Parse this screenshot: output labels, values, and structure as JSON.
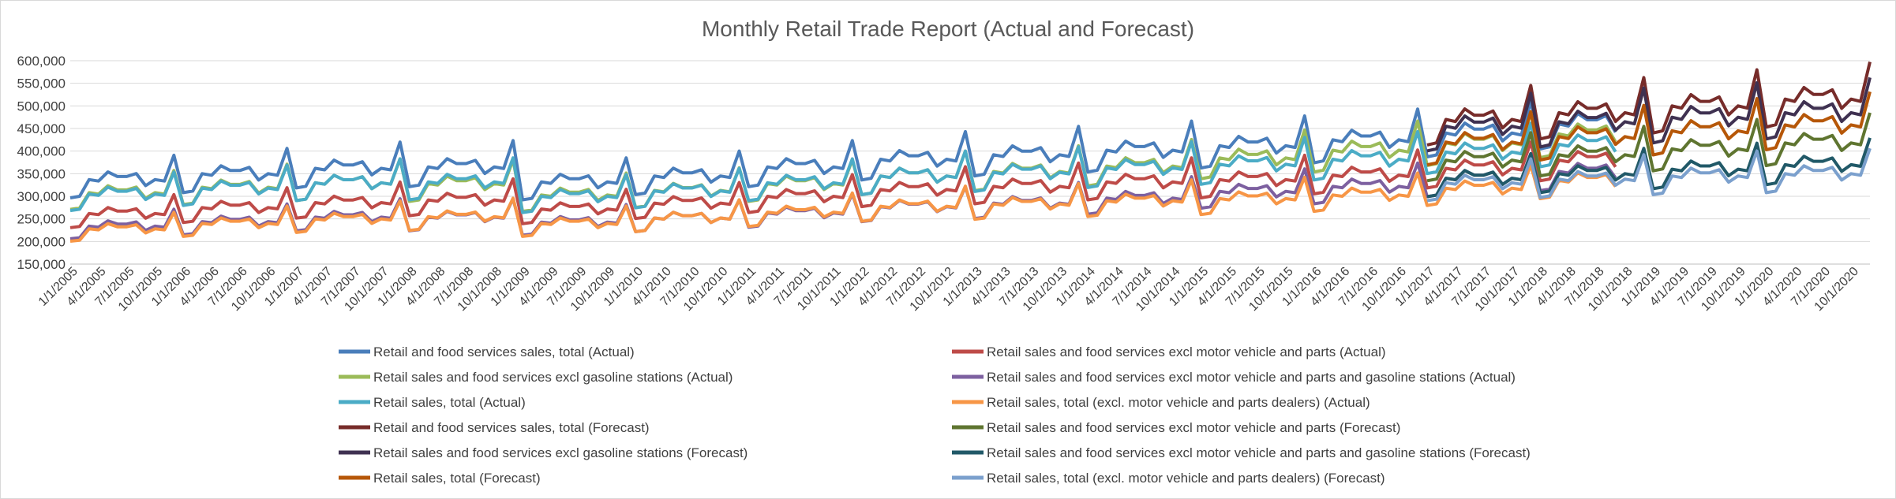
{
  "chart_data": {
    "type": "line",
    "title": "Monthly Retail Trade Report (Actual and Forecast)",
    "xlabel": "",
    "ylabel": "",
    "ylim": [
      150000,
      600000
    ],
    "yticks": [
      "150,000",
      "200,000",
      "250,000",
      "300,000",
      "350,000",
      "400,000",
      "450,000",
      "500,000",
      "550,000",
      "600,000"
    ],
    "x_start": "1/1/2005",
    "x_end": "12/1/2020",
    "x_tick_labels": [
      "1/1/2005",
      "4/1/2005",
      "7/1/2005",
      "10/1/2005",
      "1/1/2006",
      "4/1/2006",
      "7/1/2006",
      "10/1/2006",
      "1/1/2007",
      "4/1/2007",
      "7/1/2007",
      "10/1/2007",
      "1/1/2008",
      "4/1/2008",
      "7/1/2008",
      "10/1/2008",
      "1/1/2009",
      "4/1/2009",
      "7/1/2009",
      "10/1/2009",
      "1/1/2010",
      "4/1/2010",
      "7/1/2010",
      "10/1/2010",
      "1/1/2011",
      "4/1/2011",
      "7/1/2011",
      "10/1/2011",
      "1/1/2012",
      "4/1/2012",
      "7/1/2012",
      "10/1/2012",
      "1/1/2013",
      "4/1/2013",
      "7/1/2013",
      "10/1/2013",
      "1/1/2014",
      "4/1/2014",
      "7/1/2014",
      "10/1/2014",
      "1/1/2015",
      "4/1/2015",
      "7/1/2015",
      "10/1/2015",
      "1/1/2016",
      "4/1/2016",
      "7/1/2016",
      "10/1/2016",
      "1/1/2017",
      "4/1/2017",
      "7/1/2017",
      "10/1/2017",
      "1/1/2018",
      "4/1/2018",
      "7/1/2018",
      "10/1/2018",
      "1/1/2019",
      "4/1/2019",
      "7/1/2019",
      "10/1/2019",
      "1/1/2020",
      "4/1/2020",
      "7/1/2020",
      "10/1/2020"
    ],
    "grid": true,
    "legend_position": "bottom",
    "seasonal_pattern": [
      -0.12,
      -0.11,
      0.0,
      -0.01,
      0.05,
      0.02,
      0.02,
      0.04,
      -0.04,
      0.0,
      -0.01,
      0.16
    ],
    "series": [
      {
        "name": "Retail and food services sales, total (Actual)",
        "color": "#4a7ebb",
        "x_range": [
          "1/1/2005",
          "9/1/2018"
        ],
        "annual_mean": [
          337000,
          350000,
          362000,
          365000,
          332000,
          345000,
          365000,
          382000,
          392000,
          402000,
          412000,
          425000,
          440000,
          460000
        ]
      },
      {
        "name": "Retail sales and food services excl motor vehicle and parts (Actual)",
        "color": "#be4b48",
        "x_range": [
          "1/1/2005",
          "9/1/2018"
        ],
        "annual_mean": [
          262000,
          275000,
          286000,
          292000,
          272000,
          285000,
          300000,
          315000,
          322000,
          332000,
          337000,
          347000,
          362000,
          380000
        ]
      },
      {
        "name": "Retail sales and food services excl gasoline stations (Actual)",
        "color": "#9bbb59",
        "x_range": [
          "1/1/2005",
          "9/1/2018"
        ],
        "annual_mean": [
          308000,
          320000,
          330000,
          328000,
          303000,
          313000,
          328000,
          345000,
          355000,
          367000,
          385000,
          402000,
          418000,
          438000
        ]
      },
      {
        "name": "Retail sales and food services excl motor vehicle and parts and gasoline stations (Actual)",
        "color": "#7d60a0",
        "x_range": [
          "1/1/2005",
          "9/1/2018"
        ],
        "annual_mean": [
          234000,
          244000,
          254000,
          254000,
          243000,
          252000,
          263000,
          277000,
          285000,
          296000,
          311000,
          322000,
          340000,
          355000
        ]
      },
      {
        "name": "Retail sales, total (Actual)",
        "color": "#4bacc6",
        "x_range": [
          "1/1/2005",
          "9/1/2018"
        ],
        "annual_mean": [
          305000,
          318000,
          330000,
          332000,
          300000,
          312000,
          330000,
          345000,
          353000,
          363000,
          371000,
          382000,
          398000,
          415000
        ]
      },
      {
        "name": "Retail sales, total (excl. motor vehicle and parts dealers) (Actual)",
        "color": "#f79646",
        "x_range": [
          "1/1/2005",
          "9/1/2018"
        ],
        "annual_mean": [
          228000,
          240000,
          250000,
          255000,
          240000,
          252000,
          265000,
          278000,
          283000,
          290000,
          295000,
          303000,
          318000,
          335000
        ]
      },
      {
        "name": "Retail and food services sales, total (Forecast)",
        "color": "#772c2a",
        "x_range": [
          "1/1/2017",
          "12/1/2020"
        ],
        "annual_mean": [
          470000,
          485000,
          500000,
          515000
        ]
      },
      {
        "name": "Retail sales and food services excl motor vehicle and parts (Forecast)",
        "color": "#5f7530",
        "x_range": [
          "1/1/2017",
          "12/1/2020"
        ],
        "annual_mean": [
          380000,
          392000,
          405000,
          418000
        ]
      },
      {
        "name": "Retail sales and food services excl gasoline stations (Forecast)",
        "color": "#3f3151",
        "x_range": [
          "1/1/2017",
          "12/1/2020"
        ],
        "annual_mean": [
          455000,
          465000,
          475000,
          485000
        ]
      },
      {
        "name": "Retail sales and food services excl motor vehicle and parts and gasoline stations (Forecast)",
        "color": "#215968",
        "x_range": [
          "1/1/2017",
          "12/1/2020"
        ],
        "annual_mean": [
          340000,
          350000,
          360000,
          370000
        ]
      },
      {
        "name": "Retail sales, total (Forecast)",
        "color": "#b65708",
        "x_range": [
          "1/1/2017",
          "12/1/2020"
        ],
        "annual_mean": [
          420000,
          432000,
          445000,
          458000
        ]
      },
      {
        "name": "Retail sales, total (excl. motor vehicle and parts dealers) (Forecast)",
        "color": "#7ba0cd",
        "x_range": [
          "1/1/2017",
          "12/1/2020"
        ],
        "annual_mean": [
          330000,
          338000,
          345000,
          350000
        ]
      }
    ]
  }
}
